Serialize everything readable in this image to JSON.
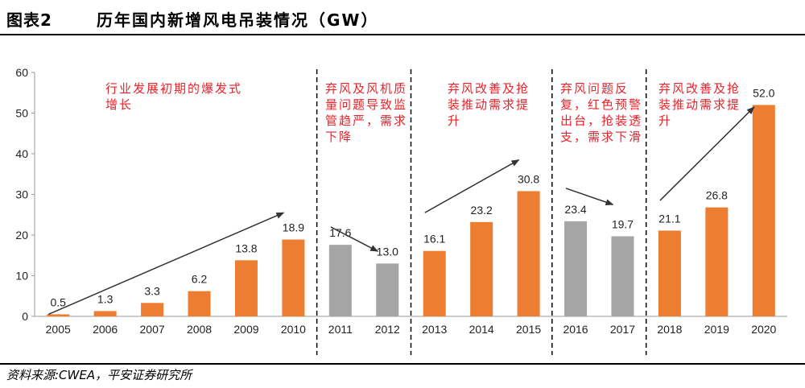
{
  "header": {
    "figure_label": "图表2",
    "title": "历年国内新增风电吊装情况（GW）"
  },
  "source": "资料来源:CWEA，平安证券研究所",
  "annotations": [
    {
      "id": "phase1",
      "text": "行业发展初期的爆发式增长"
    },
    {
      "id": "phase2",
      "text": "弃风及风机质量问题导致监管趋严，需求下降"
    },
    {
      "id": "phase3",
      "text": "弃风改善及抢装推动需求提升"
    },
    {
      "id": "phase4",
      "text": "弃风问题反复，红色预警出台，抢装透支，需求下滑"
    },
    {
      "id": "phase5",
      "text": "弃风改善及抢装推动需求提升"
    }
  ],
  "colors": {
    "orange": "#ED7D31",
    "gray": "#A5A5A5",
    "annotation": "#e8232a"
  },
  "chart_data": {
    "type": "bar",
    "title": "历年国内新增风电吊装情况（GW）",
    "categories": [
      "2005",
      "2006",
      "2007",
      "2008",
      "2009",
      "2010",
      "2011",
      "2012",
      "2013",
      "2014",
      "2015",
      "2016",
      "2017",
      "2018",
      "2019",
      "2020"
    ],
    "values": [
      0.5,
      1.3,
      3.3,
      6.2,
      13.8,
      18.9,
      17.6,
      13.0,
      16.1,
      23.2,
      30.8,
      23.4,
      19.7,
      21.1,
      26.8,
      52.0
    ],
    "value_labels": [
      "0.5",
      "1.3",
      "3.3",
      "6.2",
      "13.8",
      "18.9",
      "17.6",
      "13.0",
      "16.1",
      "23.2",
      "30.8",
      "23.4",
      "19.7",
      "21.1",
      "26.8",
      "52.0"
    ],
    "bar_colors": [
      "orange",
      "orange",
      "orange",
      "orange",
      "orange",
      "orange",
      "gray",
      "gray",
      "orange",
      "orange",
      "orange",
      "gray",
      "gray",
      "orange",
      "orange",
      "orange"
    ],
    "ylim": [
      0,
      60
    ],
    "yticks": [
      0,
      10,
      20,
      30,
      40,
      50,
      60
    ],
    "xlabel": "",
    "ylabel": "",
    "grid": false,
    "phase_dividers_after": [
      "2010",
      "2012",
      "2015",
      "2017"
    ],
    "trend_arrows": [
      {
        "from": [
          "2005",
          0.5
        ],
        "to": [
          "2010",
          25.5
        ]
      },
      {
        "from": [
          "2011",
          22
        ],
        "to": [
          "2012",
          16
        ]
      },
      {
        "from": [
          "2013",
          25.5
        ],
        "to": [
          "2015",
          38.5
        ]
      },
      {
        "from": [
          "2016",
          31.5
        ],
        "to": [
          "2017",
          27.5
        ]
      },
      {
        "from": [
          "2018",
          28.5
        ],
        "to": [
          "2020",
          51.5
        ]
      }
    ]
  }
}
